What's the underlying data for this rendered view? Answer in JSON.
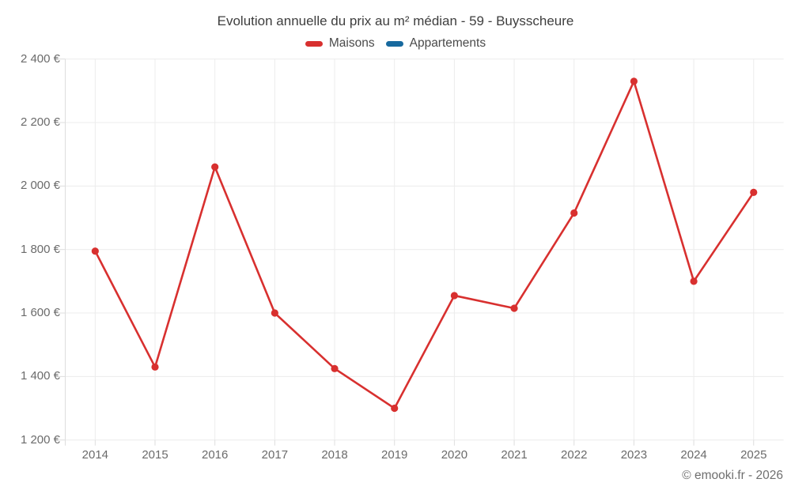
{
  "page": {
    "title": "Evolution annuelle du prix au m² médian - 59 - Buysscheure",
    "footer": "© emooki.fr - 2026"
  },
  "legend": {
    "items": [
      {
        "label": "Maisons",
        "color": "#d8302f"
      },
      {
        "label": "Appartements",
        "color": "#17699e"
      }
    ]
  },
  "chart_data": {
    "type": "line",
    "title": "Evolution annuelle du prix au m² médian - 59 - Buysscheure",
    "categories": [
      "2014",
      "2015",
      "2016",
      "2017",
      "2018",
      "2019",
      "2020",
      "2021",
      "2022",
      "2023",
      "2024",
      "2025"
    ],
    "series": [
      {
        "name": "Maisons",
        "color": "#d8302f",
        "values": [
          1795,
          1430,
          2060,
          1600,
          1425,
          1300,
          1655,
          1615,
          1915,
          2330,
          1700,
          1980
        ]
      },
      {
        "name": "Appartements",
        "color": "#17699e",
        "values": []
      }
    ],
    "xlabel": "",
    "ylabel": "",
    "ylim": [
      1200,
      2400
    ],
    "y_ticks": [
      1200,
      1400,
      1600,
      1800,
      2000,
      2200,
      2400
    ],
    "y_tick_labels": [
      "1 200 €",
      "1 400 €",
      "1 600 €",
      "1 800 €",
      "2 000 €",
      "2 200 €",
      "2 400 €"
    ],
    "grid": true,
    "legend_position": "top",
    "colors": {
      "grid": "#ececec",
      "axis": "#dedede",
      "tick_text": "#6b6b6b"
    }
  }
}
